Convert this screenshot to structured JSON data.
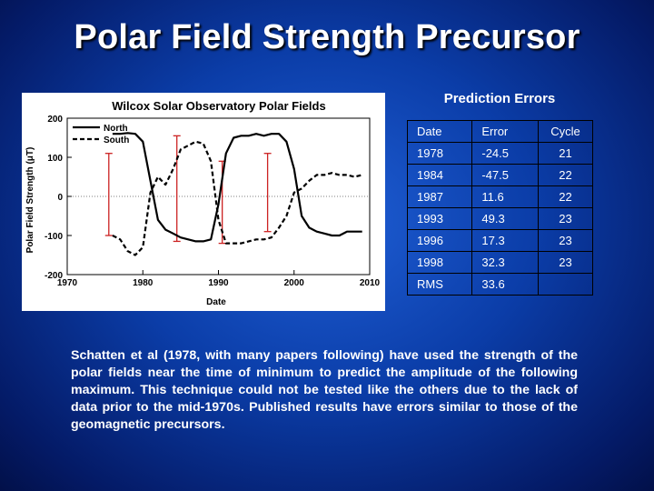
{
  "slide": {
    "title": "Polar Field Strength Precursor",
    "body": "Schatten et al (1978, with many papers following) have used the strength of the polar fields near the time of minimum to predict the amplitude of the following maximum. This technique could not be tested like the others due to the lack of data prior to the mid-1970s. Published results have errors similar to those of the geomagnetic precursors."
  },
  "table": {
    "title": "Prediction Errors",
    "headers": [
      "Date",
      "Error",
      "Cycle"
    ],
    "rows": [
      [
        "1978",
        "-24.5",
        "21"
      ],
      [
        "1984",
        "-47.5",
        "22"
      ],
      [
        "1987",
        "11.6",
        "22"
      ],
      [
        "1993",
        "49.3",
        "23"
      ],
      [
        "1996",
        "17.3",
        "23"
      ],
      [
        "1998",
        "32.3",
        "23"
      ],
      [
        "RMS",
        "33.6",
        ""
      ]
    ]
  },
  "chart_data": {
    "type": "line",
    "title": "Wilcox Solar Observatory Polar Fields",
    "xlabel": "Date",
    "ylabel": "Polar Field Strength (μT)",
    "xlim": [
      1970,
      2010
    ],
    "ylim": [
      -200,
      200
    ],
    "xticks": [
      1970,
      1980,
      1990,
      2000,
      2010
    ],
    "yticks": [
      200,
      100,
      0,
      -100,
      -200
    ],
    "legend": "top-left",
    "grid": false,
    "colors": {
      "north": "#000000",
      "south": "#000000",
      "error_bars": "#cc2222"
    },
    "series": [
      {
        "name": "North",
        "style": "solid",
        "x": [
          1976.0,
          1977.0,
          1978.0,
          1979.0,
          1980.0,
          1981.0,
          1982.0,
          1983.0,
          1984.0,
          1985.0,
          1986.0,
          1987.0,
          1988.0,
          1989.0,
          1990.0,
          1991.0,
          1992.0,
          1993.0,
          1994.0,
          1995.0,
          1996.0,
          1997.0,
          1998.0,
          1999.0,
          2000.0,
          2001.0,
          2002.0,
          2003.0,
          2004.0,
          2005.0,
          2006.0,
          2007.0,
          2008.0,
          2009.0
        ],
        "values": [
          160,
          160,
          162,
          160,
          140,
          40,
          -60,
          -85,
          -95,
          -105,
          -110,
          -115,
          -115,
          -110,
          -20,
          110,
          150,
          155,
          155,
          160,
          155,
          160,
          160,
          140,
          70,
          -50,
          -80,
          -90,
          -95,
          -100,
          -100,
          -90,
          -90,
          -90
        ]
      },
      {
        "name": "South",
        "style": "dashed",
        "x": [
          1976.0,
          1977.0,
          1978.0,
          1979.0,
          1980.0,
          1981.0,
          1982.0,
          1983.0,
          1984.0,
          1985.0,
          1986.0,
          1987.0,
          1988.0,
          1989.0,
          1990.0,
          1991.0,
          1992.0,
          1993.0,
          1994.0,
          1995.0,
          1996.0,
          1997.0,
          1998.0,
          1999.0,
          2000.0,
          2001.0,
          2002.0,
          2003.0,
          2004.0,
          2005.0,
          2006.0,
          2007.0,
          2008.0,
          2009.0
        ],
        "values": [
          -100,
          -110,
          -140,
          -150,
          -130,
          10,
          50,
          30,
          70,
          120,
          130,
          140,
          135,
          90,
          -60,
          -120,
          -120,
          -120,
          -115,
          -110,
          -110,
          -105,
          -80,
          -50,
          10,
          20,
          40,
          55,
          55,
          60,
          55,
          55,
          50,
          55
        ]
      }
    ],
    "error_bars": [
      {
        "x": 1975.5,
        "low": -100,
        "high": 110
      },
      {
        "x": 1984.5,
        "low": -115,
        "high": 155
      },
      {
        "x": 1990.5,
        "low": -120,
        "high": 90
      },
      {
        "x": 1996.5,
        "low": -90,
        "high": 110
      }
    ]
  }
}
